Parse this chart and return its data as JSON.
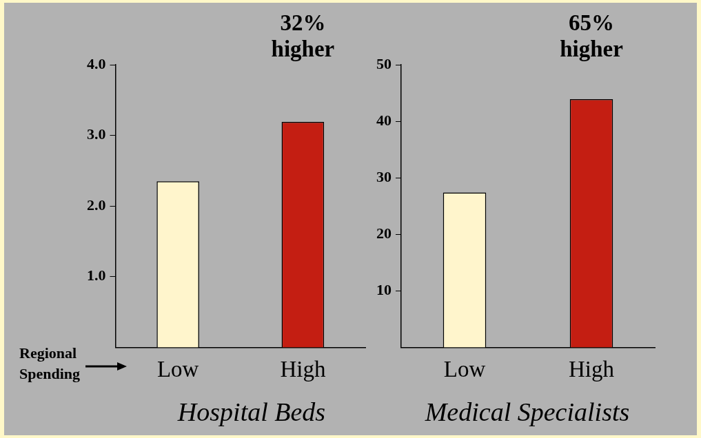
{
  "chart_data": [
    {
      "type": "bar",
      "xlabel": "Hospital Beds",
      "categories": [
        "Low",
        "High"
      ],
      "colors": [
        "#fff5cc",
        "#c41e12"
      ],
      "values": [
        2.35,
        3.19
      ],
      "ylim": [
        0,
        4
      ],
      "yticks": [
        {
          "value": 1,
          "label": "1.0"
        },
        {
          "value": 2,
          "label": "2.0"
        },
        {
          "value": 3,
          "label": "3.0"
        },
        {
          "value": 4,
          "label": "4.0"
        }
      ],
      "grid": false,
      "legend": false,
      "annotations": [
        "32% higher",
        "Regional Spending"
      ]
    },
    {
      "type": "bar",
      "xlabel": "Medical Specialists",
      "categories": [
        "Low",
        "High"
      ],
      "colors": [
        "#fff5cc",
        "#c41e12"
      ],
      "values": [
        27.4,
        43.9
      ],
      "ylim": [
        0,
        50
      ],
      "yticks": [
        10,
        20,
        30,
        40,
        50
      ],
      "grid": false,
      "legend": false,
      "annotations": [
        "65% higher"
      ]
    }
  ]
}
